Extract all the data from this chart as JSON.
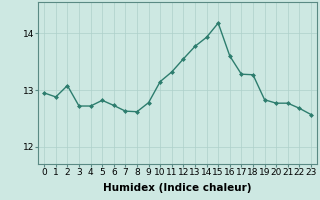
{
  "x": [
    0,
    1,
    2,
    3,
    4,
    5,
    6,
    7,
    8,
    9,
    10,
    11,
    12,
    13,
    14,
    15,
    16,
    17,
    18,
    19,
    20,
    21,
    22,
    23
  ],
  "y": [
    12.95,
    12.88,
    13.08,
    12.72,
    12.72,
    12.82,
    12.73,
    12.63,
    12.62,
    12.78,
    13.15,
    13.32,
    13.55,
    13.77,
    13.93,
    14.18,
    13.6,
    13.28,
    13.27,
    12.83,
    12.77,
    12.77,
    12.68,
    12.57
  ],
  "line_color": "#2d7d6e",
  "marker": "D",
  "markersize": 2.0,
  "linewidth": 1.0,
  "xlabel": "Humidex (Indice chaleur)",
  "xlabel_fontsize": 7.5,
  "yticks": [
    12,
    13,
    14
  ],
  "ylim": [
    11.7,
    14.55
  ],
  "xlim": [
    -0.5,
    23.5
  ],
  "bg_color": "#cde8e2",
  "grid_color": "#aed0ca",
  "tick_fontsize": 6.5,
  "fig_bg": "#cde8e2",
  "spine_color": "#5a8a84"
}
